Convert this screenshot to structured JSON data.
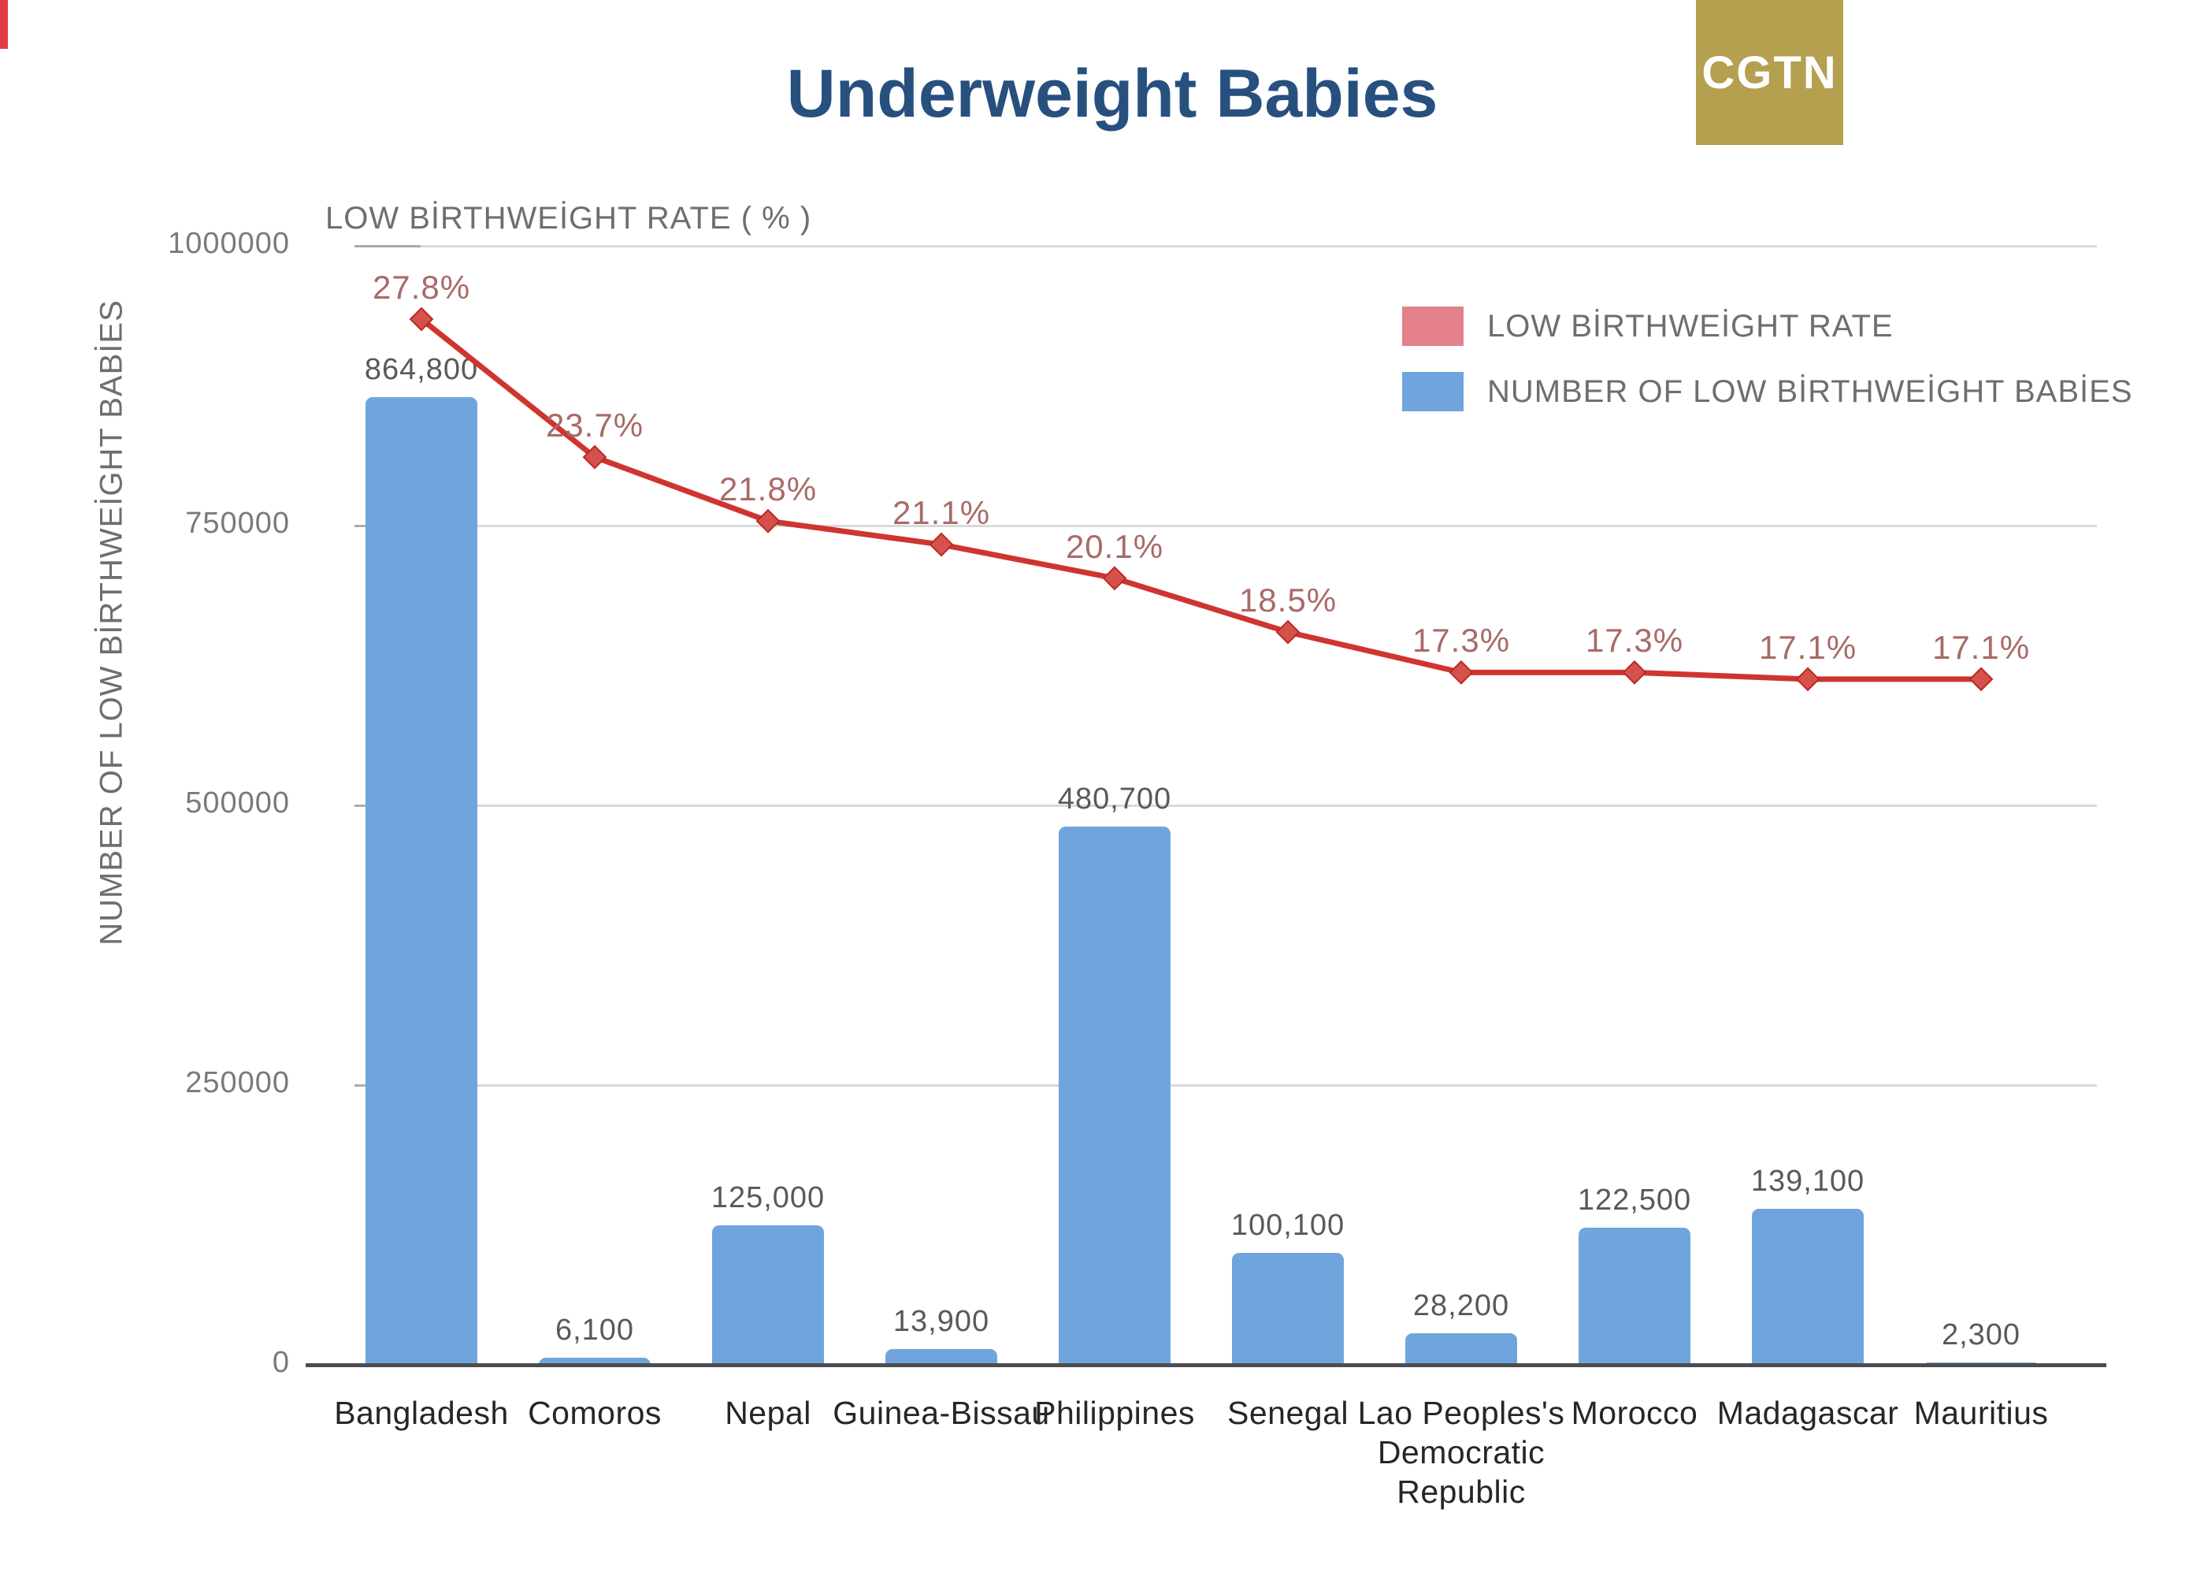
{
  "header": {
    "title": "Underweight Babies",
    "logo_text": "CGTN"
  },
  "legend": [
    {
      "label": "LOW BİRTHWEİGHT RATE",
      "color": "#e3808a"
    },
    {
      "label": "NUMBER OF LOW BİRTHWEİGHT BABİES",
      "color": "#6fa5dc"
    }
  ],
  "axes": {
    "y_left_title": "NUMBER OF LOW BİRTHWEİGHT BABİES",
    "secondary_axis_note": "LOW BİRTHWEİGHT RATE ( % )",
    "y_ticks": [
      "1000000",
      "750000",
      "500000",
      "250000",
      "0"
    ]
  },
  "chart_data": {
    "type": "bar",
    "subtype": "bar+line-combo",
    "title": "Underweight Babies",
    "grid": true,
    "legend_position": "top-right",
    "ylim_left": [
      0,
      1000000
    ],
    "ylabel_left": "NUMBER OF LOW BİRTHWEİGHT BABİES",
    "ylabel_right": "LOW BİRTHWEİGHT RATE ( % )",
    "categories": [
      "Bangladesh",
      "Comoros",
      "Nepal",
      "Guinea-Bissau",
      "Philippines",
      "Senegal",
      "Lao Peoples's\nDemocratic\nRepublic",
      "Morocco",
      "Madagascar",
      "Mauritius"
    ],
    "series": [
      {
        "name": "NUMBER OF LOW BİRTHWEİGHT BABİES",
        "type": "bar",
        "values": [
          864800,
          6100,
          125000,
          13900,
          480700,
          100100,
          28200,
          122500,
          139100,
          2300
        ],
        "labels": [
          "864,800",
          "6,100",
          "125,000",
          "13,900",
          "480,700",
          "100,100",
          "28,200",
          "122,500",
          "139,100",
          "2,300"
        ]
      },
      {
        "name": "LOW BİRTHWEİGHT RATE",
        "type": "line",
        "values": [
          27.8,
          23.7,
          21.8,
          21.1,
          20.1,
          18.5,
          17.3,
          17.3,
          17.1,
          17.1
        ],
        "labels": [
          "27.8%",
          "23.7%",
          "21.8%",
          "21.1%",
          "20.1%",
          "18.5%",
          "17.3%",
          "17.3%",
          "17.1%",
          "17.1%"
        ]
      }
    ]
  },
  "colors": {
    "title": "#27507f",
    "logo_bg": "#b4a04e",
    "bar": "#6fa5dc",
    "line": "#cf3530",
    "marker_fill": "#d5524c",
    "marker_stroke": "#bc2823",
    "rate_label": "#a96a67",
    "value_label": "#595959",
    "accent_strip": "#e23b47"
  }
}
